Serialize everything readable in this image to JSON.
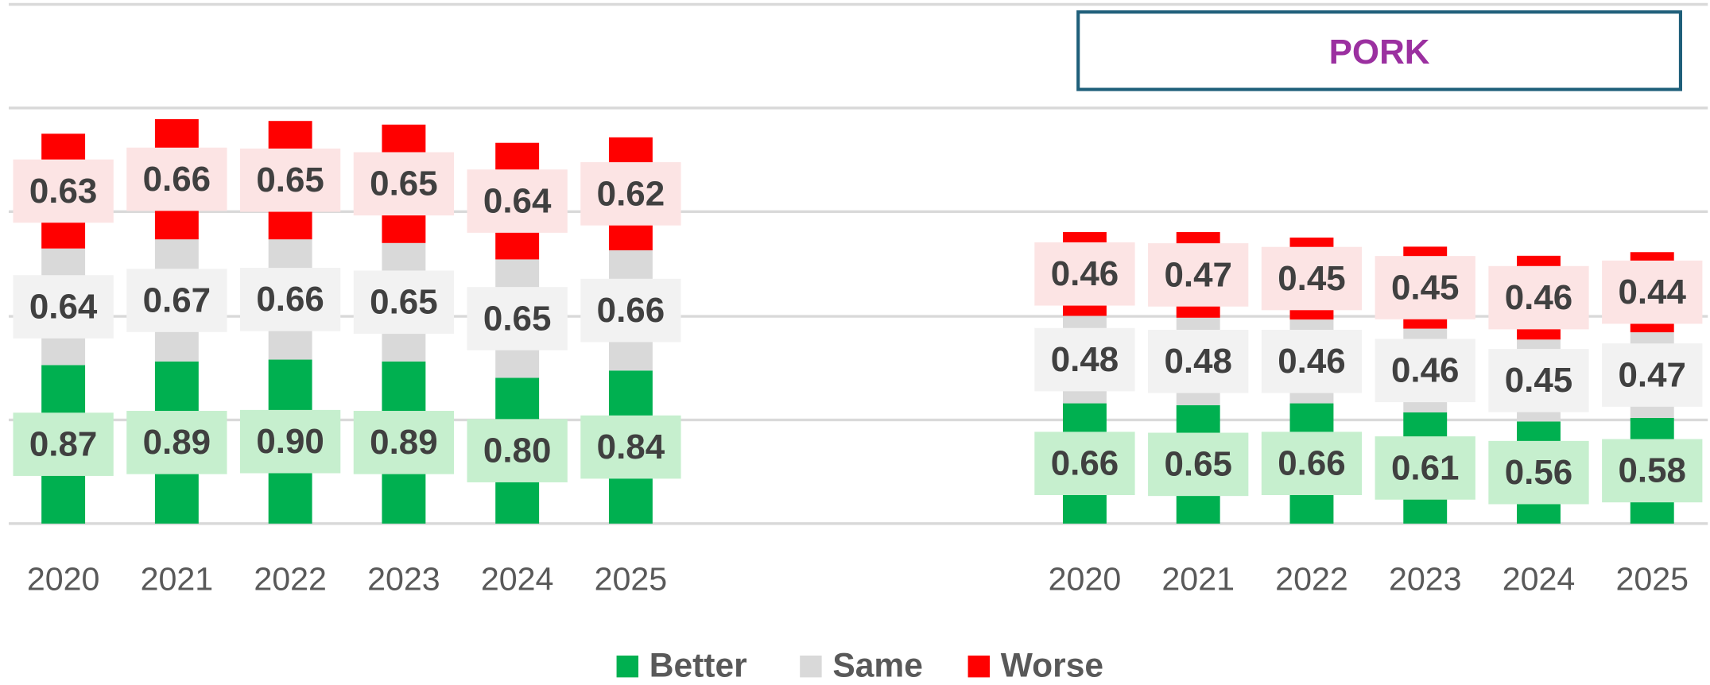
{
  "chart_data": [
    {
      "type": "bar",
      "stacked": true,
      "categories": [
        "2020",
        "2021",
        "2022",
        "2023",
        "2024",
        "2025"
      ],
      "ylim": [
        0,
        2.85
      ],
      "series": [
        {
          "name": "Better",
          "color": "#00b050",
          "label_color": "#c6efce",
          "values": [
            0.87,
            0.89,
            0.9,
            0.89,
            0.8,
            0.84
          ],
          "value_labels": [
            "0.87",
            "0.89",
            "0.90",
            "0.89",
            "0.80",
            "0.84"
          ]
        },
        {
          "name": "Same",
          "color": "#d9d9d9",
          "label_color": "#f2f2f2",
          "values": [
            0.64,
            0.67,
            0.66,
            0.65,
            0.65,
            0.66
          ],
          "value_labels": [
            "0.64",
            "0.67",
            "0.66",
            "0.65",
            "0.65",
            "0.66"
          ]
        },
        {
          "name": "Worse",
          "color": "#ff0000",
          "label_color": "#fce4e4",
          "values": [
            0.63,
            0.66,
            0.65,
            0.65,
            0.64,
            0.62
          ],
          "value_labels": [
            "0.63",
            "0.66",
            "0.65",
            "0.65",
            "0.64",
            "0.62"
          ]
        }
      ]
    },
    {
      "type": "bar",
      "stacked": true,
      "title": "PORK",
      "categories": [
        "2020",
        "2021",
        "2022",
        "2023",
        "2024",
        "2025"
      ],
      "ylim": [
        0,
        2.85
      ],
      "series": [
        {
          "color": "#00b050",
          "label_color": "#c6efce",
          "values": [
            0.66,
            0.65,
            0.66,
            0.61,
            0.56,
            0.58
          ],
          "value_labels": [
            "0.66",
            "0.65",
            "0.66",
            "0.61",
            "0.56",
            "0.58"
          ]
        },
        {
          "color": "#d9d9d9",
          "label_color": "#f2f2f2",
          "values": [
            0.48,
            0.48,
            0.46,
            0.46,
            0.45,
            0.47
          ],
          "value_labels": [
            "0.48",
            "0.48",
            "0.46",
            "0.46",
            "0.45",
            "0.47"
          ]
        },
        {
          "color": "#ff0000",
          "label_color": "#fce4e4",
          "values": [
            0.46,
            0.47,
            0.45,
            0.45,
            0.46,
            0.44
          ],
          "value_labels": [
            "0.46",
            "0.47",
            "0.45",
            "0.45",
            "0.46",
            "0.44"
          ]
        }
      ]
    }
  ]
}
